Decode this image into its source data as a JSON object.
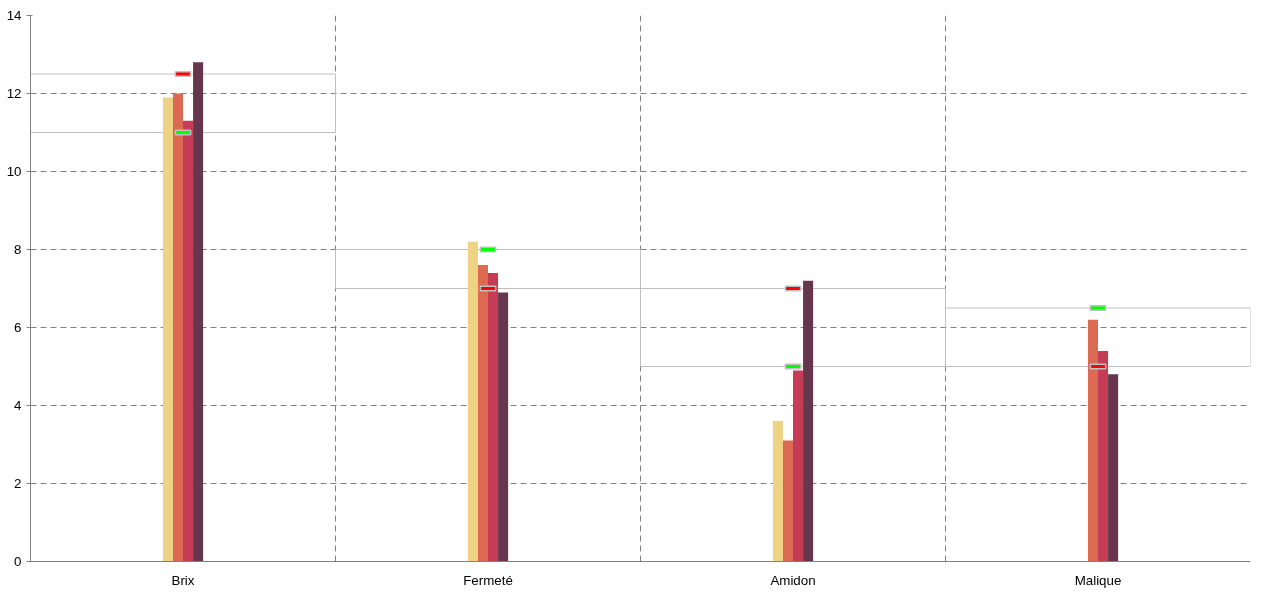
{
  "chart_data": {
    "type": "bar",
    "categories": [
      "Brix",
      "Fermeté",
      "Amidon",
      "Malique"
    ],
    "ylim": [
      0,
      14
    ],
    "yticks": [
      0,
      2,
      4,
      6,
      8,
      10,
      12,
      14
    ],
    "grid": true,
    "series": [
      {
        "color": "#c0c0c0",
        "base": [
          11,
          7,
          5,
          5
        ],
        "values": [
          1.5,
          1,
          2,
          1.5
        ]
      },
      {
        "color": "#edd383",
        "values": [
          11.9,
          8.2,
          3.6,
          0
        ]
      },
      {
        "color": "#dc6952",
        "values": [
          12.0,
          7.6,
          3.1,
          6.2
        ]
      },
      {
        "color": "#c43c55",
        "values": [
          11.3,
          7.4,
          4.9,
          5.4
        ]
      },
      {
        "color": "#66364c",
        "values": [
          12.8,
          6.9,
          7.2,
          4.8
        ]
      },
      {
        "type": "scatter",
        "color": "#00ff00",
        "x": [
          "Brix",
          "Fermeté",
          "Amidon",
          "Malique"
        ],
        "values": [
          11,
          8,
          5,
          6.5
        ]
      },
      {
        "type": "scatter",
        "color": "#ff0000",
        "x": [
          "Brix",
          "Fermeté",
          "Amidon",
          "Malique"
        ],
        "values": [
          12.5,
          7,
          7,
          5
        ]
      }
    ]
  }
}
